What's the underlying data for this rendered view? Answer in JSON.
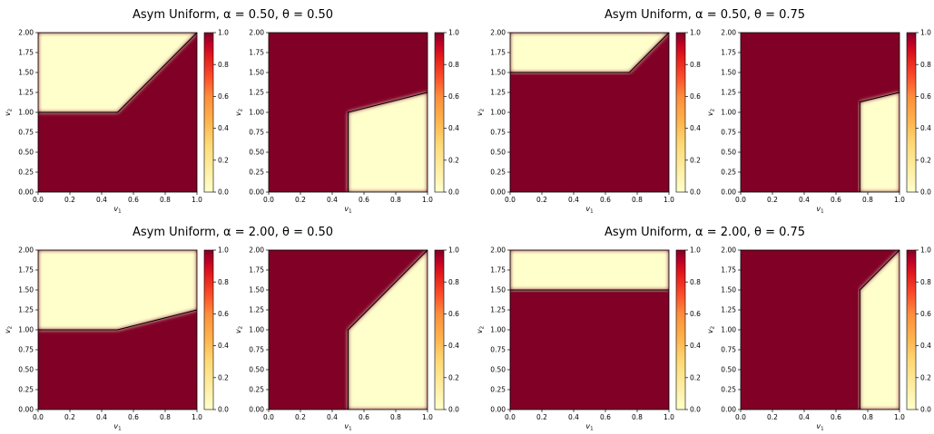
{
  "chart_data": [
    {
      "group_title": "Asym Uniform, α = 0.50, θ = 0.50",
      "panels": [
        {
          "type": "heatmap",
          "xlabel": "v",
          "xsub": "1",
          "ylabel": "v",
          "ysub": "2",
          "xlim": [
            0,
            1
          ],
          "ylim": [
            0,
            2
          ],
          "xticks": [
            "0.0",
            "0.2",
            "0.4",
            "0.6",
            "0.8",
            "1.0"
          ],
          "yticks": [
            "0.00",
            "0.25",
            "0.50",
            "0.75",
            "1.00",
            "1.25",
            "1.50",
            "1.75",
            "2.00"
          ],
          "colorbar": {
            "range": [
              0,
              1
            ],
            "ticks": [
              "0.0",
              "0.2",
              "0.4",
              "0.6",
              "0.8",
              "1.0"
            ]
          },
          "boundary": [
            [
              0,
              1.0
            ],
            [
              0.5,
              1.0
            ],
            [
              1.0,
              2.0
            ]
          ]
        },
        {
          "type": "heatmap",
          "xlabel": "v",
          "xsub": "1",
          "ylabel": "v",
          "ysub": "2",
          "xlim": [
            0,
            1
          ],
          "ylim": [
            0,
            2
          ],
          "xticks": [
            "0.0",
            "0.2",
            "0.4",
            "0.6",
            "0.8",
            "1.0"
          ],
          "yticks": [
            "0.00",
            "0.25",
            "0.50",
            "0.75",
            "1.00",
            "1.25",
            "1.50",
            "1.75",
            "2.00"
          ],
          "colorbar": {
            "range": [
              0,
              1
            ],
            "ticks": [
              "0.0",
              "0.2",
              "0.4",
              "0.6",
              "0.8",
              "1.0"
            ]
          },
          "boundary": [
            [
              0.5,
              0
            ],
            [
              0.5,
              1.0
            ],
            [
              1.0,
              1.25
            ]
          ]
        }
      ]
    },
    {
      "group_title": "Asym Uniform, α = 0.50, θ = 0.75",
      "panels": [
        {
          "type": "heatmap",
          "xlabel": "v",
          "xsub": "1",
          "ylabel": "v",
          "ysub": "2",
          "xlim": [
            0,
            1
          ],
          "ylim": [
            0,
            2
          ],
          "xticks": [
            "0.0",
            "0.2",
            "0.4",
            "0.6",
            "0.8",
            "1.0"
          ],
          "yticks": [
            "0.00",
            "0.25",
            "0.50",
            "0.75",
            "1.00",
            "1.25",
            "1.50",
            "1.75",
            "2.00"
          ],
          "colorbar": {
            "range": [
              0,
              1
            ],
            "ticks": [
              "0.0",
              "0.2",
              "0.4",
              "0.6",
              "0.8",
              "1.0"
            ]
          },
          "boundary": [
            [
              0,
              1.5
            ],
            [
              0.75,
              1.5
            ],
            [
              1.0,
              2.0
            ]
          ]
        },
        {
          "type": "heatmap",
          "xlabel": "v",
          "xsub": "1",
          "ylabel": "v",
          "ysub": "2",
          "xlim": [
            0,
            1
          ],
          "ylim": [
            0,
            2
          ],
          "xticks": [
            "0.0",
            "0.2",
            "0.4",
            "0.6",
            "0.8",
            "1.0"
          ],
          "yticks": [
            "0.00",
            "0.25",
            "0.50",
            "0.75",
            "1.00",
            "1.25",
            "1.50",
            "1.75",
            "2.00"
          ],
          "colorbar": {
            "range": [
              0,
              1
            ],
            "ticks": [
              "0.0",
              "0.2",
              "0.4",
              "0.6",
              "0.8",
              "1.0"
            ]
          },
          "boundary": [
            [
              0.75,
              0
            ],
            [
              0.75,
              1.13
            ],
            [
              1.0,
              1.25
            ]
          ]
        }
      ]
    },
    {
      "group_title": "Asym Uniform, α = 2.00, θ = 0.50",
      "panels": [
        {
          "type": "heatmap",
          "xlabel": "v",
          "xsub": "1",
          "ylabel": "v",
          "ysub": "2",
          "xlim": [
            0,
            1
          ],
          "ylim": [
            0,
            2
          ],
          "xticks": [
            "0.0",
            "0.2",
            "0.4",
            "0.6",
            "0.8",
            "1.0"
          ],
          "yticks": [
            "0.00",
            "0.25",
            "0.50",
            "0.75",
            "1.00",
            "1.25",
            "1.50",
            "1.75",
            "2.00"
          ],
          "colorbar": {
            "range": [
              0,
              1
            ],
            "ticks": [
              "0.0",
              "0.2",
              "0.4",
              "0.6",
              "0.8",
              "1.0"
            ]
          },
          "boundary": [
            [
              0,
              1.0
            ],
            [
              0.5,
              1.0
            ],
            [
              1.0,
              1.25
            ]
          ]
        },
        {
          "type": "heatmap",
          "xlabel": "v",
          "xsub": "1",
          "ylabel": "v",
          "ysub": "2",
          "xlim": [
            0,
            1
          ],
          "ylim": [
            0,
            2
          ],
          "xticks": [
            "0.0",
            "0.2",
            "0.4",
            "0.6",
            "0.8",
            "1.0"
          ],
          "yticks": [
            "0.00",
            "0.25",
            "0.50",
            "0.75",
            "1.00",
            "1.25",
            "1.50",
            "1.75",
            "2.00"
          ],
          "colorbar": {
            "range": [
              0,
              1
            ],
            "ticks": [
              "0.0",
              "0.2",
              "0.4",
              "0.6",
              "0.8",
              "1.0"
            ]
          },
          "boundary": [
            [
              0.5,
              0
            ],
            [
              0.5,
              1.0
            ],
            [
              1.0,
              2.0
            ]
          ]
        }
      ]
    },
    {
      "group_title": "Asym Uniform, α = 2.00, θ = 0.75",
      "panels": [
        {
          "type": "heatmap",
          "xlabel": "v",
          "xsub": "1",
          "ylabel": "v",
          "ysub": "2",
          "xlim": [
            0,
            1
          ],
          "ylim": [
            0,
            2
          ],
          "xticks": [
            "0.0",
            "0.2",
            "0.4",
            "0.6",
            "0.8",
            "1.0"
          ],
          "yticks": [
            "0.00",
            "0.25",
            "0.50",
            "0.75",
            "1.00",
            "1.25",
            "1.50",
            "1.75",
            "2.00"
          ],
          "colorbar": {
            "range": [
              0,
              1
            ],
            "ticks": [
              "0.0",
              "0.2",
              "0.4",
              "0.6",
              "0.8",
              "1.0"
            ]
          },
          "boundary": [
            [
              0,
              1.5
            ],
            [
              1.0,
              1.5
            ]
          ]
        },
        {
          "type": "heatmap",
          "xlabel": "v",
          "xsub": "1",
          "ylabel": "v",
          "ysub": "2",
          "xlim": [
            0,
            1
          ],
          "ylim": [
            0,
            2
          ],
          "xticks": [
            "0.0",
            "0.2",
            "0.4",
            "0.6",
            "0.8",
            "1.0"
          ],
          "yticks": [
            "0.00",
            "0.25",
            "0.50",
            "0.75",
            "1.00",
            "1.25",
            "1.50",
            "1.75",
            "2.00"
          ],
          "colorbar": {
            "range": [
              0,
              1
            ],
            "ticks": [
              "0.0",
              "0.2",
              "0.4",
              "0.6",
              "0.8",
              "1.0"
            ]
          },
          "boundary": [
            [
              0.75,
              0
            ],
            [
              0.75,
              1.5
            ],
            [
              1.0,
              2.0
            ]
          ]
        }
      ]
    }
  ],
  "colors": {
    "high": "#800026",
    "low": "#ffffcc",
    "boundary": "#000000"
  }
}
